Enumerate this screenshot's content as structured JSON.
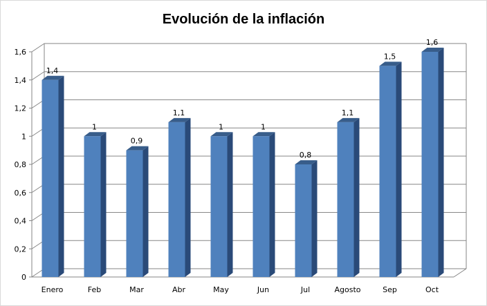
{
  "chart_data": {
    "type": "bar",
    "title": "Evolución de la inflación",
    "categories": [
      "Enero",
      "Feb",
      "Mar",
      "Abr",
      "May",
      "Jun",
      "Jul",
      "Agosto",
      "Sep",
      "Oct"
    ],
    "values": [
      1.4,
      1,
      0.9,
      1.1,
      1,
      1,
      0.8,
      1.1,
      1.5,
      1.6
    ],
    "data_labels": [
      "1,4",
      "1",
      "0,9",
      "1,1",
      "1",
      "1",
      "0,8",
      "1,1",
      "1,5",
      "1,6"
    ],
    "y_ticks": [
      "0",
      "0,2",
      "0,4",
      "0,6",
      "0,8",
      "1",
      "1,2",
      "1,4",
      "1,6"
    ],
    "ylim": [
      0,
      1.6
    ],
    "xlabel": "",
    "ylabel": "",
    "grid": true,
    "legend": "none",
    "bar_style": "3d",
    "colors": {
      "bar_front": "#4f81bd",
      "bar_side": "#2a4a78",
      "bar_top": "#385d8a",
      "grid": "#868686",
      "wall": "#ffffff"
    }
  }
}
